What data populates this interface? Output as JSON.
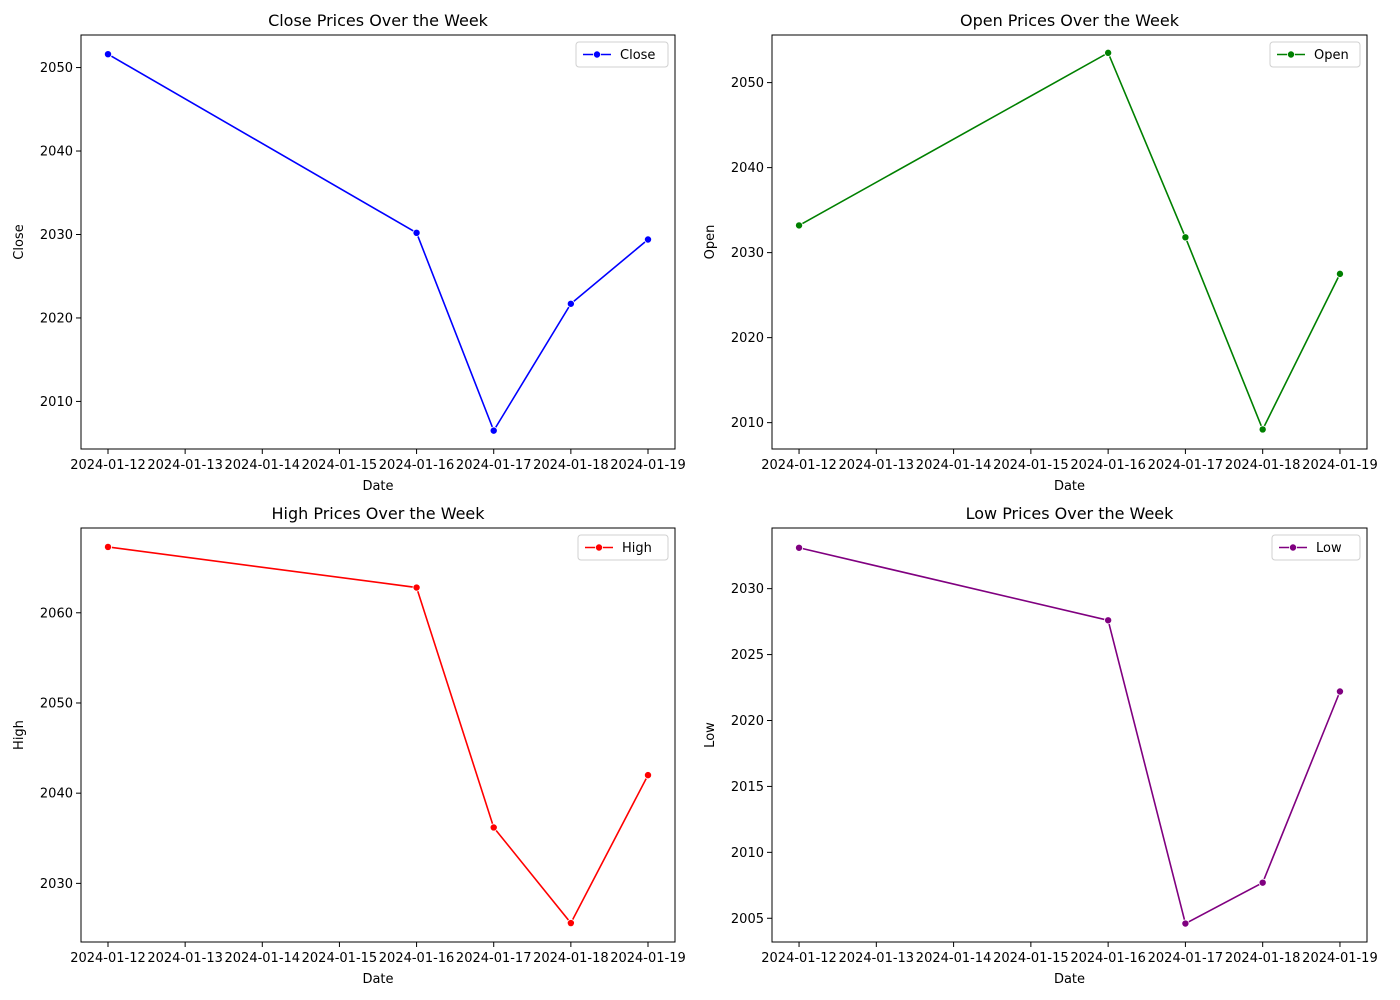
{
  "chart_data": [
    {
      "type": "line",
      "title": "Close Prices Over the Week",
      "xlabel": "Date",
      "ylabel": "Close",
      "x_ticks": [
        "2024-01-12",
        "2024-01-13",
        "2024-01-14",
        "2024-01-15",
        "2024-01-16",
        "2024-01-17",
        "2024-01-18",
        "2024-01-19"
      ],
      "y_ticks": [
        2010,
        2020,
        2030,
        2040,
        2050
      ],
      "ylim": [
        2004.3,
        2053.9
      ],
      "grid": false,
      "legend_position": "top-right",
      "series": [
        {
          "name": "Close",
          "color": "#0000ff",
          "x": [
            "2024-01-12",
            "2024-01-16",
            "2024-01-17",
            "2024-01-18",
            "2024-01-19"
          ],
          "values": [
            2051.6,
            2030.2,
            2006.5,
            2021.7,
            2029.4
          ]
        }
      ]
    },
    {
      "type": "line",
      "title": "Open Prices Over the Week",
      "xlabel": "Date",
      "ylabel": "Open",
      "x_ticks": [
        "2024-01-12",
        "2024-01-13",
        "2024-01-14",
        "2024-01-15",
        "2024-01-16",
        "2024-01-17",
        "2024-01-18",
        "2024-01-19"
      ],
      "y_ticks": [
        2010,
        2020,
        2030,
        2040,
        2050
      ],
      "ylim": [
        2006.9,
        2055.6
      ],
      "grid": false,
      "legend_position": "top-right",
      "series": [
        {
          "name": "Open",
          "color": "#008000",
          "x": [
            "2024-01-12",
            "2024-01-16",
            "2024-01-17",
            "2024-01-18",
            "2024-01-19"
          ],
          "values": [
            2033.2,
            2053.5,
            2031.8,
            2009.2,
            2027.5
          ]
        }
      ]
    },
    {
      "type": "line",
      "title": "High Prices Over the Week",
      "xlabel": "Date",
      "ylabel": "High",
      "x_ticks": [
        "2024-01-12",
        "2024-01-13",
        "2024-01-14",
        "2024-01-15",
        "2024-01-16",
        "2024-01-17",
        "2024-01-18",
        "2024-01-19"
      ],
      "y_ticks": [
        2030,
        2040,
        2050,
        2060
      ],
      "ylim": [
        2023.5,
        2069.4
      ],
      "grid": false,
      "legend_position": "top-right",
      "series": [
        {
          "name": "High",
          "color": "#ff0000",
          "x": [
            "2024-01-12",
            "2024-01-16",
            "2024-01-17",
            "2024-01-18",
            "2024-01-19"
          ],
          "values": [
            2067.3,
            2062.8,
            2036.2,
            2025.6,
            2042.0
          ]
        }
      ]
    },
    {
      "type": "line",
      "title": "Low Prices Over the Week",
      "xlabel": "Date",
      "ylabel": "Low",
      "x_ticks": [
        "2024-01-12",
        "2024-01-13",
        "2024-01-14",
        "2024-01-15",
        "2024-01-16",
        "2024-01-17",
        "2024-01-18",
        "2024-01-19"
      ],
      "y_ticks": [
        2005,
        2010,
        2015,
        2020,
        2025,
        2030
      ],
      "ylim": [
        2003.2,
        2034.6
      ],
      "grid": false,
      "legend_position": "top-right",
      "series": [
        {
          "name": "Low",
          "color": "#800080",
          "x": [
            "2024-01-12",
            "2024-01-16",
            "2024-01-17",
            "2024-01-18",
            "2024-01-19"
          ],
          "values": [
            2033.1,
            2027.6,
            2004.6,
            2007.7,
            2022.2
          ]
        }
      ]
    }
  ]
}
